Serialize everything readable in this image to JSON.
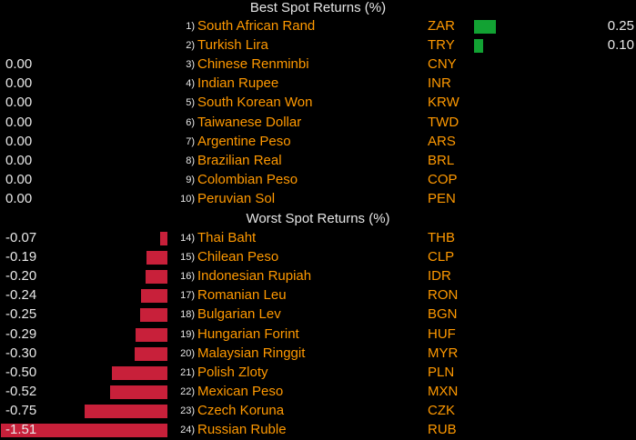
{
  "best": {
    "title": "Best Spot Returns (%)",
    "rows": [
      {
        "rank": "1)",
        "name": "South African Rand",
        "code": "ZAR",
        "value": "0.25",
        "v": 0.25
      },
      {
        "rank": "2)",
        "name": "Turkish Lira",
        "code": "TRY",
        "value": "0.10",
        "v": 0.1
      },
      {
        "rank": "3)",
        "name": "Chinese Renminbi",
        "code": "CNY",
        "value": "0.00",
        "v": 0
      },
      {
        "rank": "4)",
        "name": "Indian Rupee",
        "code": "INR",
        "value": "0.00",
        "v": 0
      },
      {
        "rank": "5)",
        "name": "South Korean Won",
        "code": "KRW",
        "value": "0.00",
        "v": 0
      },
      {
        "rank": "6)",
        "name": "Taiwanese Dollar",
        "code": "TWD",
        "value": "0.00",
        "v": 0
      },
      {
        "rank": "7)",
        "name": "Argentine Peso",
        "code": "ARS",
        "value": "0.00",
        "v": 0
      },
      {
        "rank": "8)",
        "name": "Brazilian Real",
        "code": "BRL",
        "value": "0.00",
        "v": 0
      },
      {
        "rank": "9)",
        "name": "Colombian Peso",
        "code": "COP",
        "value": "0.00",
        "v": 0
      },
      {
        "rank": "10)",
        "name": "Peruvian Sol",
        "code": "PEN",
        "value": "0.00",
        "v": 0
      }
    ]
  },
  "worst": {
    "title": "Worst Spot Returns (%)",
    "rows": [
      {
        "rank": "14)",
        "name": "Thai Baht",
        "code": "THB",
        "value": "-0.07",
        "v": -0.07
      },
      {
        "rank": "15)",
        "name": "Chilean Peso",
        "code": "CLP",
        "value": "-0.19",
        "v": -0.19
      },
      {
        "rank": "16)",
        "name": "Indonesian Rupiah",
        "code": "IDR",
        "value": "-0.20",
        "v": -0.2
      },
      {
        "rank": "17)",
        "name": "Romanian Leu",
        "code": "RON",
        "value": "-0.24",
        "v": -0.24
      },
      {
        "rank": "18)",
        "name": "Bulgarian Lev",
        "code": "BGN",
        "value": "-0.25",
        "v": -0.25
      },
      {
        "rank": "19)",
        "name": "Hungarian Forint",
        "code": "HUF",
        "value": "-0.29",
        "v": -0.29
      },
      {
        "rank": "20)",
        "name": "Malaysian Ringgit",
        "code": "MYR",
        "value": "-0.30",
        "v": -0.3
      },
      {
        "rank": "21)",
        "name": "Polish Zloty",
        "code": "PLN",
        "value": "-0.50",
        "v": -0.5
      },
      {
        "rank": "22)",
        "name": "Mexican Peso",
        "code": "MXN",
        "value": "-0.52",
        "v": -0.52
      },
      {
        "rank": "23)",
        "name": "Czech Koruna",
        "code": "CZK",
        "value": "-0.75",
        "v": -0.75
      },
      {
        "rank": "24)",
        "name": "Russian Ruble",
        "code": "RUB",
        "value": "-1.51",
        "v": -1.51
      }
    ]
  },
  "chart_data": {
    "type": "bar",
    "title": "",
    "panels": [
      {
        "title": "Best Spot Returns (%)",
        "categories": [
          "South African Rand",
          "Turkish Lira",
          "Chinese Renminbi",
          "Indian Rupee",
          "South Korean Won",
          "Taiwanese Dollar",
          "Argentine Peso",
          "Brazilian Real",
          "Colombian Peso",
          "Peruvian Sol"
        ],
        "values": [
          0.25,
          0.1,
          0.0,
          0.0,
          0.0,
          0.0,
          0.0,
          0.0,
          0.0,
          0.0
        ]
      },
      {
        "title": "Worst Spot Returns (%)",
        "categories": [
          "Thai Baht",
          "Chilean Peso",
          "Indonesian Rupiah",
          "Romanian Leu",
          "Bulgarian Lev",
          "Hungarian Forint",
          "Malaysian Ringgit",
          "Polish Zloty",
          "Mexican Peso",
          "Czech Koruna",
          "Russian Ruble"
        ],
        "values": [
          -0.07,
          -0.19,
          -0.2,
          -0.24,
          -0.25,
          -0.29,
          -0.3,
          -0.5,
          -0.52,
          -0.75,
          -1.51
        ]
      }
    ],
    "colors": {
      "positive": "#12a233",
      "negative": "#c8203a",
      "name_text": "#ff9900"
    }
  }
}
